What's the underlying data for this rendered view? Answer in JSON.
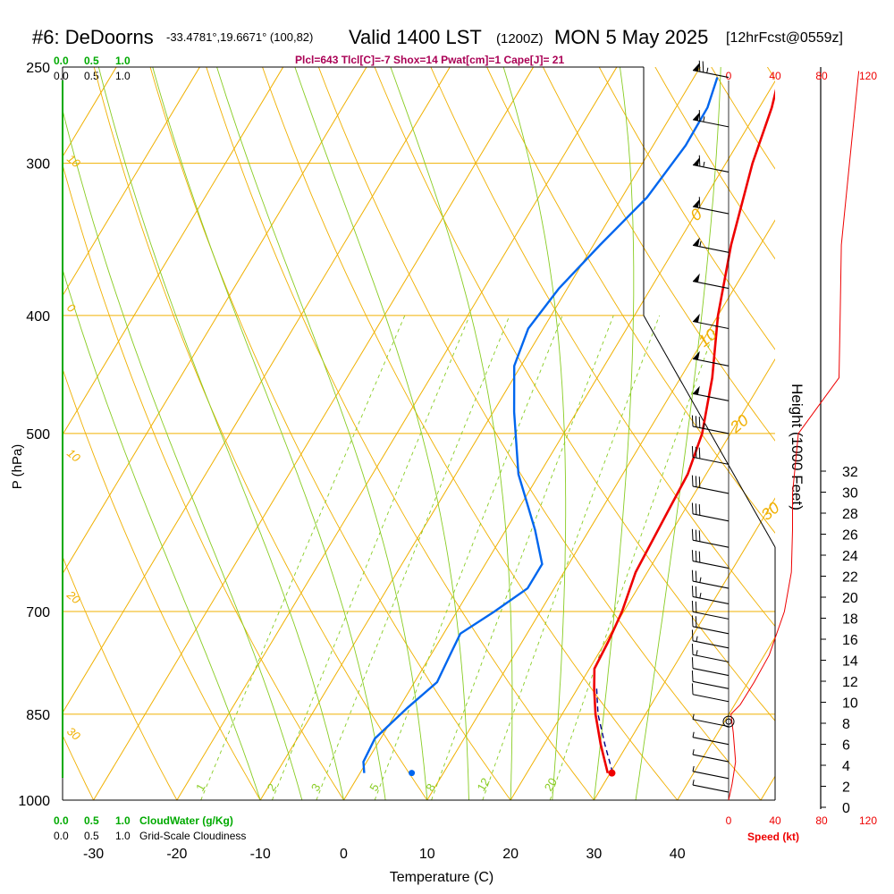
{
  "header": {
    "station": "#6: DeDoorns",
    "coords": "-33.4781°,19.6671° (100,82)",
    "valid": "Valid 1400 LST",
    "zulu": "(1200Z)",
    "date": "MON 5 May 2025",
    "forecast": "[12hrFcst@0559z]",
    "indices": "Plcl=643 Tlcl[C]=-7 Shox=14 Pwat[cm]=1 Cape[J]= 21"
  },
  "colors": {
    "isobar": "#f0b000",
    "isotherm": "#f0b000",
    "dry_adiabat": "#f0b000",
    "moist_adiabat": "#88cc22",
    "mixing_ratio": "#88cc22",
    "temperature": "#ee0000",
    "dewpoint": "#0066ee",
    "parcel": "#000088",
    "cloud": "#00aa00",
    "speed": "#ee0000"
  },
  "chart_data": {
    "type": "line",
    "title": "#6: DeDoorns  Valid 1400 LST (1200Z) MON 5 May 2025 [12hrFcst@0559z]",
    "xlabel": "Temperature (C)",
    "ylabel": "P (hPa)",
    "right_ylabel": "Height (1000 Feet)",
    "x_ticks": [
      "-30",
      "-20",
      "-10",
      "0",
      "10",
      "20",
      "30",
      "40"
    ],
    "xlim": [
      -35,
      45
    ],
    "y_ticks": [
      "250",
      "300",
      "400",
      "500",
      "700",
      "850",
      "1000"
    ],
    "ylim": [
      1000,
      250
    ],
    "height_ticks": [
      "0",
      "2",
      "4",
      "6",
      "8",
      "10",
      "12",
      "14",
      "16",
      "18",
      "20",
      "22",
      "24",
      "26",
      "28",
      "30",
      "32"
    ],
    "speed_ticks_top": [
      "0",
      "40",
      "80",
      "120"
    ],
    "speed_ticks_bottom": [
      "0",
      "40",
      "80",
      "120"
    ],
    "speed_label": "Speed (kt)",
    "cloud_ticks": [
      "0.0",
      "0.5",
      "1.0"
    ],
    "cloud_water_label": "CloudWater (g/Kg)",
    "cloudiness_label": "Grid-Scale Cloudiness",
    "isotherm_labels": [
      {
        "t": "0",
        "p": 335
      },
      {
        "t": "10",
        "p": 425
      },
      {
        "t": "20",
        "p": 500
      },
      {
        "t": "30",
        "p": 590
      }
    ],
    "left_edge_labels": [
      {
        "t": "10",
        "p": 298
      },
      {
        "t": "0",
        "p": 395
      },
      {
        "t": "10",
        "p": 520
      },
      {
        "t": "20",
        "p": 680
      },
      {
        "t": "30",
        "p": 880
      }
    ],
    "mixing_ratio_labels": [
      "1",
      "2",
      "3",
      "5",
      "8",
      "12",
      "20"
    ],
    "mixing_ratio_values": [
      1,
      2,
      3,
      5,
      8,
      12,
      20
    ],
    "series": [
      {
        "name": "Temperature",
        "points": [
          {
            "p": 255,
            "t": 0.2
          },
          {
            "p": 270,
            "t": 1.5
          },
          {
            "p": 300,
            "t": 3.2
          },
          {
            "p": 350,
            "t": 6.5
          },
          {
            "p": 400,
            "t": 10.0
          },
          {
            "p": 450,
            "t": 13.8
          },
          {
            "p": 500,
            "t": 16.6
          },
          {
            "p": 540,
            "t": 17.8
          },
          {
            "p": 580,
            "t": 18.1
          },
          {
            "p": 650,
            "t": 18.6
          },
          {
            "p": 700,
            "t": 19.8
          },
          {
            "p": 740,
            "t": 20.3
          },
          {
            "p": 780,
            "t": 20.6
          },
          {
            "p": 810,
            "t": 22.0
          },
          {
            "p": 850,
            "t": 24.0
          },
          {
            "p": 900,
            "t": 26.8
          },
          {
            "p": 950,
            "t": 29.7
          }
        ]
      },
      {
        "name": "Dewpoint",
        "points": [
          {
            "p": 255,
            "t": -7.2
          },
          {
            "p": 270,
            "t": -6.2
          },
          {
            "p": 290,
            "t": -6.1
          },
          {
            "p": 320,
            "t": -7.0
          },
          {
            "p": 350,
            "t": -9.2
          },
          {
            "p": 380,
            "t": -11.0
          },
          {
            "p": 410,
            "t": -11.8
          },
          {
            "p": 440,
            "t": -10.8
          },
          {
            "p": 480,
            "t": -7.5
          },
          {
            "p": 540,
            "t": -2.5
          },
          {
            "p": 600,
            "t": 3.5
          },
          {
            "p": 640,
            "t": 6.8
          },
          {
            "p": 670,
            "t": 6.8
          },
          {
            "p": 700,
            "t": 4.5
          },
          {
            "p": 730,
            "t": 2.0
          },
          {
            "p": 760,
            "t": 2.3
          },
          {
            "p": 800,
            "t": 2.7
          },
          {
            "p": 840,
            "t": 1.0
          },
          {
            "p": 890,
            "t": -0.7
          },
          {
            "p": 930,
            "t": -0.4
          },
          {
            "p": 950,
            "t": 0.5
          }
        ]
      },
      {
        "name": "Parcel",
        "points": [
          {
            "p": 810,
            "t": 22.3
          },
          {
            "p": 850,
            "t": 24.3
          },
          {
            "p": 900,
            "t": 27.3
          },
          {
            "p": 945,
            "t": 30.0
          }
        ]
      }
    ],
    "surface_temperature": {
      "p": 950,
      "t": 30.2
    },
    "surface_dewpoint": {
      "p": 950,
      "t": 6.2
    },
    "height_profile": [
      {
        "p": 255,
        "h": 34
      },
      {
        "p": 300,
        "h": 31
      },
      {
        "p": 350,
        "h": 28.2
      },
      {
        "p": 400,
        "h": 24.5
      },
      {
        "p": 450,
        "h": 20.5
      },
      {
        "p": 500,
        "h": 18.0
      },
      {
        "p": 550,
        "h": 16.0
      },
      {
        "p": 600,
        "h": 14.0
      },
      {
        "p": 650,
        "h": 12.3
      },
      {
        "p": 700,
        "h": 10.0
      },
      {
        "p": 750,
        "h": 7.8
      },
      {
        "p": 800,
        "h": 6.0
      },
      {
        "p": 850,
        "h": 4.5
      },
      {
        "p": 900,
        "h": 3.0
      },
      {
        "p": 950,
        "h": 1.7
      },
      {
        "p": 990,
        "h": 0.3
      }
    ],
    "wind_speed_profile": [
      {
        "p": 252,
        "kt": 112
      },
      {
        "p": 300,
        "kt": 104
      },
      {
        "p": 350,
        "kt": 97
      },
      {
        "p": 400,
        "kt": 96
      },
      {
        "p": 450,
        "kt": 95
      },
      {
        "p": 500,
        "kt": 60
      },
      {
        "p": 560,
        "kt": 55
      },
      {
        "p": 600,
        "kt": 55
      },
      {
        "p": 650,
        "kt": 54
      },
      {
        "p": 700,
        "kt": 48
      },
      {
        "p": 760,
        "kt": 35
      },
      {
        "p": 800,
        "kt": 22
      },
      {
        "p": 835,
        "kt": 10
      },
      {
        "p": 850,
        "kt": 2
      },
      {
        "p": 880,
        "kt": 4
      },
      {
        "p": 930,
        "kt": 6
      },
      {
        "p": 970,
        "kt": 3
      },
      {
        "p": 1000,
        "kt": 0
      }
    ],
    "wind_barbs": [
      {
        "p": 255,
        "kt": 75
      },
      {
        "p": 280,
        "kt": 65
      },
      {
        "p": 305,
        "kt": 65
      },
      {
        "p": 330,
        "kt": 60
      },
      {
        "p": 355,
        "kt": 55
      },
      {
        "p": 380,
        "kt": 50
      },
      {
        "p": 410,
        "kt": 50
      },
      {
        "p": 440,
        "kt": 50
      },
      {
        "p": 470,
        "kt": 50
      },
      {
        "p": 500,
        "kt": 35
      },
      {
        "p": 530,
        "kt": 30
      },
      {
        "p": 560,
        "kt": 30
      },
      {
        "p": 590,
        "kt": 30
      },
      {
        "p": 620,
        "kt": 30
      },
      {
        "p": 645,
        "kt": 30
      },
      {
        "p": 670,
        "kt": 25
      },
      {
        "p": 690,
        "kt": 25
      },
      {
        "p": 710,
        "kt": 20
      },
      {
        "p": 730,
        "kt": 20
      },
      {
        "p": 750,
        "kt": 15
      },
      {
        "p": 770,
        "kt": 15
      },
      {
        "p": 790,
        "kt": 10
      },
      {
        "p": 810,
        "kt": 10
      },
      {
        "p": 830,
        "kt": 10
      },
      {
        "p": 870,
        "kt": 5
      },
      {
        "p": 900,
        "kt": 5
      },
      {
        "p": 930,
        "kt": 5
      },
      {
        "p": 960,
        "kt": 5
      },
      {
        "p": 985,
        "kt": 5
      }
    ],
    "grid": true
  }
}
